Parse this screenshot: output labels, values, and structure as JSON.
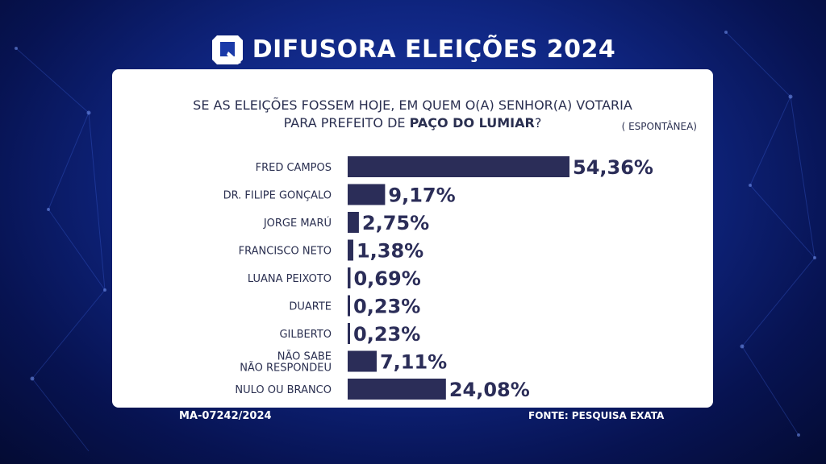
{
  "header": {
    "brand": "DIFUSORA ELEIÇÕES 2024",
    "logo_icon": "difusora-logo-icon"
  },
  "question": {
    "line1": "SE AS ELEIÇÕES FOSSEM HOJE, EM QUEM O(A) SENHOR(A) VOTARIA",
    "line2_prefix": "PARA PREFEITO DE ",
    "line2_bold": "PAÇO DO LUMIAR",
    "line2_suffix": "?",
    "note": "( ESPONTÂNEA)"
  },
  "chart_data": {
    "type": "bar",
    "orientation": "horizontal",
    "categories": [
      "FRED CAMPOS",
      "DR. FILIPE GONÇALO",
      "JORGE MARÚ",
      "FRANCISCO NETO",
      "LUANA PEIXOTO",
      "DUARTE",
      "GILBERTO",
      "NÃO SABE\nNÃO RESPONDEU",
      "NULO OU BRANCO"
    ],
    "values": [
      54.36,
      9.17,
      2.75,
      1.38,
      0.69,
      0.23,
      0.23,
      7.11,
      24.08
    ],
    "value_labels": [
      "54,36%",
      "9,17%",
      "2,75%",
      "1,38%",
      "0,69%",
      "0,23%",
      "0,23%",
      "7,11%",
      "24,08%"
    ],
    "xlim": [
      0,
      54.36
    ],
    "grid": false,
    "bar_color": "#2b2d58"
  },
  "footer": {
    "code": "MA-07242/2024",
    "source": "FONTE:  PESQUISA EXATA"
  }
}
